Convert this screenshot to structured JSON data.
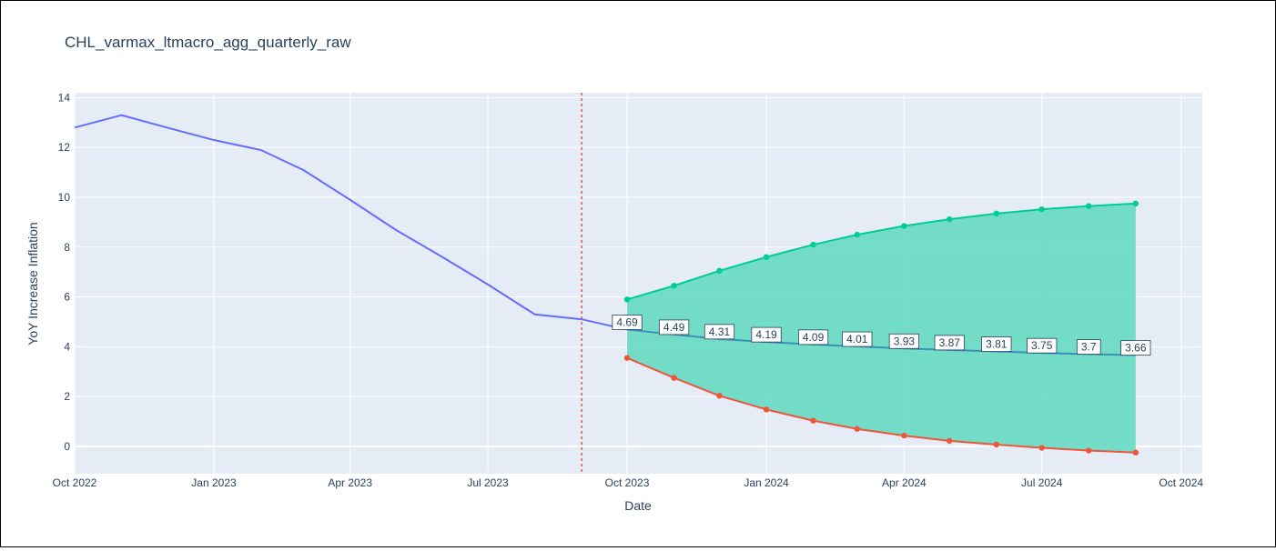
{
  "chart_data": {
    "type": "line",
    "title": "CHL_varmax_ltmacro_agg_quarterly_raw",
    "xlabel": "Date",
    "ylabel": "YoY Increase Inflation",
    "x_range": [
      "2022-10-01",
      "2024-10-15"
    ],
    "ylim": [
      -1.1,
      14.2
    ],
    "x_ticks": [
      {
        "label": "Oct 2022",
        "date": "2022-10-01"
      },
      {
        "label": "Jan 2023",
        "date": "2023-01-01"
      },
      {
        "label": "Apr 2023",
        "date": "2023-04-01"
      },
      {
        "label": "Jul 2023",
        "date": "2023-07-01"
      },
      {
        "label": "Oct 2023",
        "date": "2023-10-01"
      },
      {
        "label": "Jan 2024",
        "date": "2024-01-01"
      },
      {
        "label": "Apr 2024",
        "date": "2024-04-01"
      },
      {
        "label": "Jul 2024",
        "date": "2024-07-01"
      },
      {
        "label": "Oct 2024",
        "date": "2024-10-01"
      }
    ],
    "y_ticks": [
      0,
      2,
      4,
      6,
      8,
      10,
      12,
      14
    ],
    "grid": true,
    "forecast_start": "2023-09-01",
    "colors": {
      "history": "#636efa",
      "forecast": "#3c90b8",
      "upper": "#00cc96",
      "lower": "#ef553b",
      "band_fill": "#6ddbc4",
      "divider": "#e0413a",
      "plot_bg": "#e5ecf6",
      "grid": "#ffffff",
      "text": "#2a3f5f"
    },
    "series": [
      {
        "role": "history",
        "x": [
          "2022-10-01",
          "2022-11-01",
          "2022-12-01",
          "2023-01-01",
          "2023-02-01",
          "2023-03-01",
          "2023-04-01",
          "2023-05-01",
          "2023-06-01",
          "2023-07-01",
          "2023-08-01",
          "2023-09-01",
          "2023-10-01"
        ],
        "y": [
          12.8,
          13.3,
          12.8,
          12.3,
          11.9,
          11.1,
          9.9,
          8.7,
          7.6,
          6.5,
          5.3,
          5.1,
          4.69
        ]
      },
      {
        "role": "forecast",
        "x": [
          "2023-10-01",
          "2023-11-01",
          "2023-12-01",
          "2024-01-01",
          "2024-02-01",
          "2024-03-01",
          "2024-04-01",
          "2024-05-01",
          "2024-06-01",
          "2024-07-01",
          "2024-08-01",
          "2024-09-01"
        ],
        "y": [
          4.69,
          4.49,
          4.31,
          4.19,
          4.09,
          4.01,
          3.93,
          3.87,
          3.81,
          3.75,
          3.7,
          3.66
        ],
        "labels": [
          "4.69",
          "4.49",
          "4.31",
          "4.19",
          "4.09",
          "4.01",
          "3.93",
          "3.87",
          "3.81",
          "3.75",
          "3.7",
          "3.66"
        ]
      },
      {
        "role": "upper",
        "x": [
          "2023-10-01",
          "2023-11-01",
          "2023-12-01",
          "2024-01-01",
          "2024-02-01",
          "2024-03-01",
          "2024-04-01",
          "2024-05-01",
          "2024-06-01",
          "2024-07-01",
          "2024-08-01",
          "2024-09-01"
        ],
        "y": [
          5.9,
          6.45,
          7.05,
          7.6,
          8.1,
          8.5,
          8.85,
          9.12,
          9.35,
          9.52,
          9.65,
          9.75
        ]
      },
      {
        "role": "lower",
        "x": [
          "2023-10-01",
          "2023-11-01",
          "2023-12-01",
          "2024-01-01",
          "2024-02-01",
          "2024-03-01",
          "2024-04-01",
          "2024-05-01",
          "2024-06-01",
          "2024-07-01",
          "2024-08-01",
          "2024-09-01"
        ],
        "y": [
          3.55,
          2.75,
          2.03,
          1.48,
          1.03,
          0.7,
          0.43,
          0.22,
          0.07,
          -0.06,
          -0.17,
          -0.25
        ]
      }
    ]
  }
}
